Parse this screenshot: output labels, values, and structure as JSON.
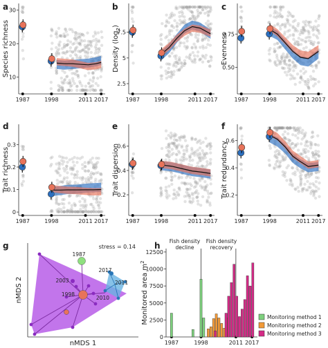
{
  "chart_data": [
    {
      "panel": "a",
      "type": "scatter",
      "ylabel": "Species richness",
      "x_ticks": [
        "1987",
        "1998",
        "2011",
        "2017"
      ],
      "y_ticks": [
        "10",
        "20",
        "30"
      ],
      "ylim": [
        5,
        32
      ],
      "series": [
        {
          "name": "Monitoring method 1",
          "color": "#2b6fc0",
          "points": [
            [
              1987,
              25
            ],
            [
              1998,
              14.8
            ]
          ],
          "trend": [
            [
              2000,
              13.8
            ],
            [
              2003,
              13.6
            ],
            [
              2006,
              13.8
            ],
            [
              2009,
              14
            ],
            [
              2012,
              14.2
            ],
            [
              2015,
              14.6
            ],
            [
              2017,
              15
            ]
          ]
        },
        {
          "name": "Monitoring method 3",
          "color": "#e8735a",
          "points": [
            [
              1987,
              25.6
            ],
            [
              1998,
              15.5
            ]
          ],
          "trend": [
            [
              2000,
              14.6
            ],
            [
              2003,
              14.4
            ],
            [
              2006,
              14.2
            ],
            [
              2009,
              13.7
            ],
            [
              2012,
              13.2
            ],
            [
              2015,
              13.4
            ],
            [
              2017,
              13.8
            ]
          ]
        }
      ]
    },
    {
      "panel": "b",
      "type": "scatter",
      "ylabel": "Density (log2)",
      "ylabel_main": "Density (log",
      "ylabel_sub": "2",
      "x_ticks": [
        "1987",
        "1998",
        "2011",
        "2017"
      ],
      "y_ticks": [
        "2.5",
        "5",
        "7.5"
      ],
      "ylim": [
        1.5,
        10.3
      ],
      "series": [
        {
          "name": "Monitoring method 1",
          "color": "#2b6fc0",
          "points": [
            [
              1987,
              7.5
            ],
            [
              1998,
              5.2
            ]
          ],
          "trend": [
            [
              1998,
              5.2
            ],
            [
              2001,
              5.9
            ],
            [
              2004,
              6.9
            ],
            [
              2007,
              7.8
            ],
            [
              2010,
              8.2
            ],
            [
              2013,
              8.0
            ],
            [
              2017,
              7.3
            ]
          ]
        },
        {
          "name": "Monitoring method 3",
          "color": "#e8735a",
          "points": [
            [
              1987,
              7.7
            ],
            [
              1998,
              5.5
            ]
          ],
          "trend": [
            [
              1998,
              5.5
            ],
            [
              2001,
              6.1
            ],
            [
              2004,
              6.9
            ],
            [
              2007,
              7.5
            ],
            [
              2010,
              7.9
            ],
            [
              2013,
              7.8
            ],
            [
              2017,
              7.4
            ]
          ]
        }
      ]
    },
    {
      "panel": "c",
      "type": "scatter",
      "ylabel": "Evenness",
      "x_ticks": [
        "1987",
        "1998",
        "2011",
        "2017"
      ],
      "y_ticks": [
        "0.50",
        "0.75"
      ],
      "ylim": [
        0.3,
        0.98
      ],
      "series": [
        {
          "name": "Monitoring method 1",
          "color": "#2b6fc0",
          "points": [
            [
              1987,
              0.72
            ],
            [
              1998,
              0.75
            ]
          ],
          "trend": [
            [
              1998,
              0.77
            ],
            [
              2001,
              0.74
            ],
            [
              2004,
              0.67
            ],
            [
              2007,
              0.6
            ],
            [
              2010,
              0.55
            ],
            [
              2013,
              0.54
            ],
            [
              2017,
              0.6
            ]
          ]
        },
        {
          "name": "Monitoring method 3",
          "color": "#e8735a",
          "points": [
            [
              1987,
              0.77
            ],
            [
              1998,
              0.79
            ]
          ],
          "trend": [
            [
              1998,
              0.8
            ],
            [
              2001,
              0.76
            ],
            [
              2004,
              0.7
            ],
            [
              2007,
              0.64
            ],
            [
              2010,
              0.6
            ],
            [
              2013,
              0.59
            ],
            [
              2017,
              0.64
            ]
          ]
        }
      ]
    },
    {
      "panel": "d",
      "type": "scatter",
      "ylabel": "Trait richness",
      "x_ticks": [
        "1987",
        "1998",
        "2011",
        "2017"
      ],
      "y_ticks": [
        "0",
        "0.1",
        "0.2",
        "0.3"
      ],
      "ylim": [
        -0.015,
        0.39
      ],
      "series": [
        {
          "name": "Monitoring method 1",
          "color": "#2b6fc0",
          "points": [
            [
              1987,
              0.2
            ],
            [
              1998,
              0.08
            ]
          ],
          "trend": [
            [
              1998,
              0.09
            ],
            [
              2001,
              0.095
            ],
            [
              2004,
              0.1
            ],
            [
              2008,
              0.102
            ],
            [
              2011,
              0.106
            ],
            [
              2014,
              0.108
            ],
            [
              2017,
              0.11
            ]
          ]
        },
        {
          "name": "Monitoring method 3",
          "color": "#e8735a",
          "points": [
            [
              1987,
              0.225
            ],
            [
              1998,
              0.11
            ]
          ],
          "trend": [
            [
              1998,
              0.105
            ],
            [
              2001,
              0.1
            ],
            [
              2004,
              0.097
            ],
            [
              2008,
              0.095
            ],
            [
              2011,
              0.092
            ],
            [
              2014,
              0.09
            ],
            [
              2017,
              0.09
            ]
          ]
        }
      ]
    },
    {
      "panel": "e",
      "type": "scatter",
      "ylabel": "Trait dispersion",
      "x_ticks": [
        "1987",
        "1998",
        "2011",
        "2017"
      ],
      "y_ticks": [
        "0.2",
        "0.4",
        "0.6"
      ],
      "ylim": [
        0.03,
        0.78
      ],
      "series": [
        {
          "name": "Monitoring method 1",
          "color": "#2b6fc0",
          "points": [
            [
              1987,
              0.45
            ],
            [
              1998,
              0.44
            ]
          ],
          "trend": [
            [
              1998,
              0.44
            ],
            [
              2002,
              0.43
            ],
            [
              2006,
              0.41
            ],
            [
              2010,
              0.39
            ],
            [
              2014,
              0.38
            ],
            [
              2017,
              0.37
            ]
          ]
        },
        {
          "name": "Monitoring method 3",
          "color": "#e8735a",
          "points": [
            [
              1987,
              0.46
            ],
            [
              1998,
              0.45
            ]
          ],
          "trend": [
            [
              1998,
              0.45
            ],
            [
              2002,
              0.44
            ],
            [
              2006,
              0.42
            ],
            [
              2010,
              0.4
            ],
            [
              2014,
              0.39
            ],
            [
              2017,
              0.38
            ]
          ]
        }
      ]
    },
    {
      "panel": "f",
      "type": "scatter",
      "ylabel": "Trait redundancy",
      "x_ticks": [
        "1987",
        "1998",
        "2011",
        "2017"
      ],
      "y_ticks": [
        "0.2",
        "0.4",
        "0.6"
      ],
      "ylim": [
        0.05,
        0.72
      ],
      "series": [
        {
          "name": "Monitoring method 1",
          "color": "#2b6fc0",
          "points": [
            [
              1987,
              0.51
            ],
            [
              1998,
              0.63
            ]
          ],
          "trend": [
            [
              1998,
              0.62
            ],
            [
              2001,
              0.59
            ],
            [
              2004,
              0.54
            ],
            [
              2007,
              0.47
            ],
            [
              2010,
              0.43
            ],
            [
              2013,
              0.4
            ],
            [
              2017,
              0.41
            ]
          ]
        },
        {
          "name": "Monitoring method 3",
          "color": "#e8735a",
          "points": [
            [
              1987,
              0.55
            ],
            [
              1998,
              0.66
            ]
          ],
          "trend": [
            [
              1998,
              0.66
            ],
            [
              2001,
              0.63
            ],
            [
              2004,
              0.57
            ],
            [
              2007,
              0.5
            ],
            [
              2010,
              0.46
            ],
            [
              2013,
              0.42
            ],
            [
              2017,
              0.43
            ]
          ]
        }
      ]
    },
    {
      "panel": "g",
      "type": "scatter",
      "xlabel": "nMDS 1",
      "ylabel": "nMDS 2",
      "annotation": "stress = 0.14",
      "labels": [
        "1987",
        "1998",
        "2003",
        "2010",
        "2011",
        "2017"
      ],
      "hull_colors": [
        "#b457e6",
        "#69b3e2"
      ]
    },
    {
      "panel": "h",
      "type": "bar",
      "ylabel": "Monitored area m²",
      "ylabel_main": "Monitored area m",
      "ylabel_sup": "2",
      "ylim": [
        0,
        13000
      ],
      "y_ticks": [
        "0",
        "2500",
        "5000",
        "7500",
        "10000",
        "12500"
      ],
      "x_ticks": [
        "1987",
        "1998",
        "2011",
        "2017"
      ],
      "annotations": [
        "Fish density\ndecline",
        "Fish density\nrecovery"
      ],
      "series": [
        {
          "name": "Monitoring method 1",
          "color": "#7ed07e",
          "bars": [
            [
              1987,
              3500
            ],
            [
              1995,
              1100
            ],
            [
              1998,
              8500
            ],
            [
              1999,
              2800
            ]
          ]
        },
        {
          "name": "Monitoring method 2",
          "color": "#f29a38",
          "bars": [
            [
              2001,
              1200
            ],
            [
              2002,
              1500
            ],
            [
              2003,
              2700
            ],
            [
              2004,
              3400
            ],
            [
              2005,
              2800
            ],
            [
              2006,
              2000
            ],
            [
              2007,
              1300
            ],
            [
              2008,
              2800
            ]
          ]
        },
        {
          "name": "Monitoring method 3",
          "color": "#d42a86",
          "bars": [
            [
              2003,
              900
            ],
            [
              2007,
              3500
            ],
            [
              2008,
              6000
            ],
            [
              2009,
              8000
            ],
            [
              2010,
              10700
            ],
            [
              2011,
              6000
            ],
            [
              2012,
              3000
            ],
            [
              2013,
              4100
            ],
            [
              2014,
              5500
            ],
            [
              2015,
              9000
            ],
            [
              2016,
              7500
            ],
            [
              2017,
              10900
            ]
          ]
        }
      ],
      "legend": [
        "Monitoring method 1",
        "Monitoring method 2",
        "Monitoring method 3"
      ],
      "legend_position": "bottom-right"
    }
  ]
}
